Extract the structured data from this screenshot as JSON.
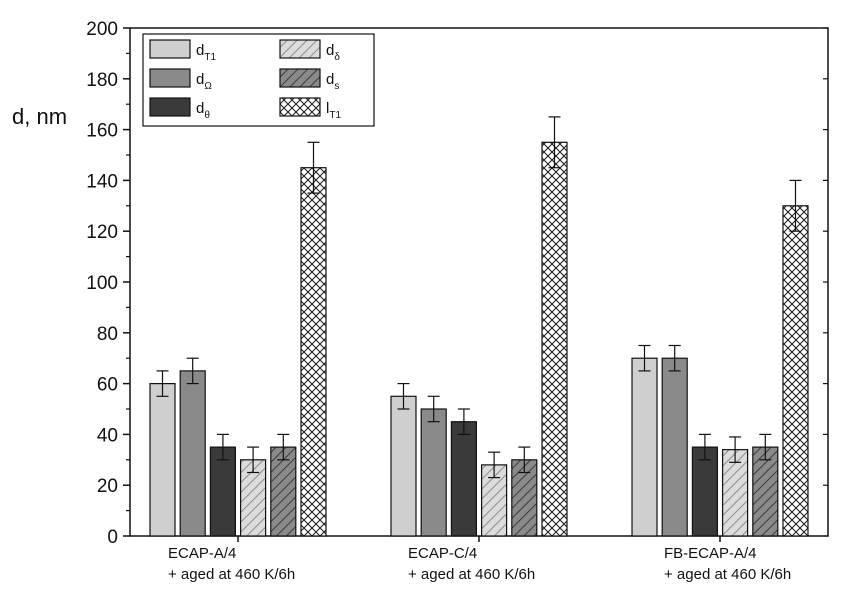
{
  "chart_data": {
    "type": "bar",
    "ylabel": "d, nm",
    "xlabel": "",
    "ylim": [
      0,
      200
    ],
    "yticks": [
      0,
      20,
      40,
      60,
      80,
      100,
      120,
      140,
      160,
      180,
      200
    ],
    "grid": false,
    "legend_position": "top-left",
    "categories": [
      [
        "ECAP-A/4",
        "+ aged at 460 K/6h"
      ],
      [
        "ECAP-C/4",
        "+ aged at 460 K/6h"
      ],
      [
        "FB-ECAP-A/4",
        "+ aged at 460 K/6h"
      ]
    ],
    "series": [
      {
        "key": "dT1",
        "name_main": "d",
        "name_sub": "T1",
        "fill": "#cfcfcf",
        "pattern": "solid",
        "values": [
          60,
          55,
          70
        ],
        "errors": [
          5,
          5,
          5
        ]
      },
      {
        "key": "dOmega",
        "name_main": "d",
        "name_sub": "Ω",
        "fill": "#8a8a8a",
        "pattern": "solid",
        "values": [
          65,
          50,
          70
        ],
        "errors": [
          5,
          5,
          5
        ]
      },
      {
        "key": "dTheta",
        "name_main": "d",
        "name_sub": "θ",
        "fill": "#3a3a3a",
        "pattern": "solid",
        "values": [
          35,
          45,
          35
        ],
        "errors": [
          5,
          5,
          5
        ]
      },
      {
        "key": "dDelta",
        "name_main": "d",
        "name_sub": "δ",
        "fill": "#d6d6d6",
        "pattern": "hatch-light",
        "values": [
          30,
          28,
          34
        ],
        "errors": [
          5,
          5,
          5
        ]
      },
      {
        "key": "dS",
        "name_main": "d",
        "name_sub": "s",
        "fill": "#7a7a7a",
        "pattern": "hatch-dark",
        "values": [
          35,
          30,
          35
        ],
        "errors": [
          5,
          5,
          5
        ]
      },
      {
        "key": "lT1",
        "name_main": "l",
        "name_sub": "T1",
        "fill": "#ffffff",
        "pattern": "crosshatch",
        "values": [
          145,
          155,
          130
        ],
        "errors": [
          10,
          10,
          10
        ]
      }
    ]
  }
}
